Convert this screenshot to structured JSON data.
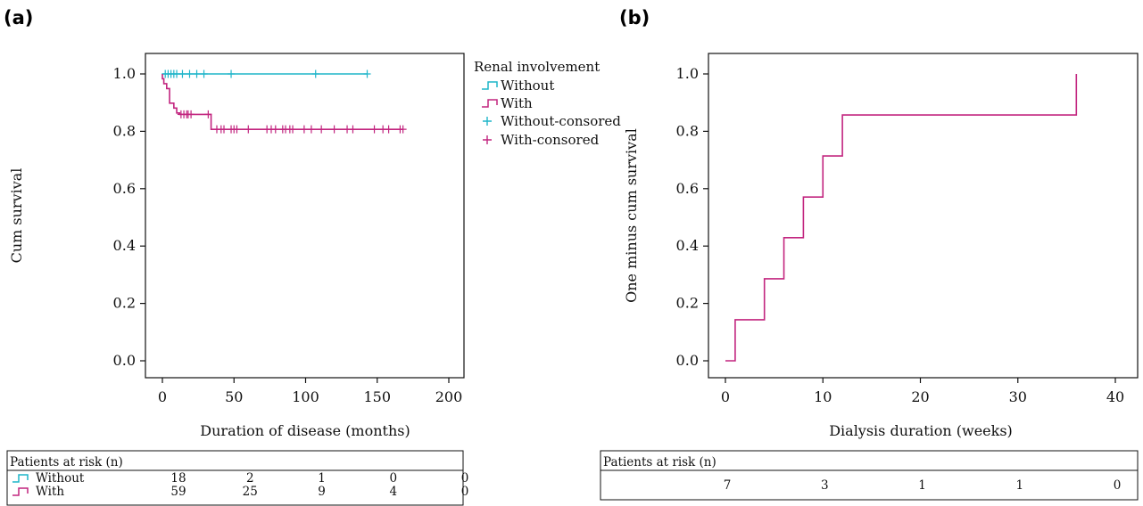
{
  "panels": {
    "a": {
      "label": "(a)"
    },
    "b": {
      "label": "(b)"
    }
  },
  "chart_data": [
    {
      "type": "line",
      "step": true,
      "xlabel": "Duration of disease (months)",
      "ylabel": "Cum survival",
      "xlim": [
        0,
        200
      ],
      "ylim": [
        0.0,
        1.0
      ],
      "xticks": [
        "0",
        "50",
        "100",
        "150",
        "200"
      ],
      "yticks": [
        "0.0",
        "0.2",
        "0.4",
        "0.6",
        "0.8",
        "1.0"
      ],
      "legend": {
        "title": "Renal involvement",
        "position": "right-outside-top",
        "entries": [
          "Without",
          "With",
          "Without-consored",
          "With-consored"
        ]
      },
      "series": [
        {
          "name": "Without",
          "color": "#1fb5c9",
          "steps": [
            [
              0,
              1.0
            ],
            [
              143,
              1.0
            ]
          ],
          "censored": [
            [
              2,
              1.0
            ],
            [
              4,
              1.0
            ],
            [
              6,
              1.0
            ],
            [
              8,
              1.0
            ],
            [
              10,
              1.0
            ],
            [
              14,
              1.0
            ],
            [
              19,
              1.0
            ],
            [
              24,
              1.0
            ],
            [
              29,
              1.0
            ],
            [
              48,
              1.0
            ],
            [
              107,
              1.0
            ],
            [
              143,
              1.0
            ]
          ]
        },
        {
          "name": "With",
          "color": "#c2257f",
          "steps": [
            [
              0,
              1.0
            ],
            [
              0,
              0.983
            ],
            [
              1,
              0.983
            ],
            [
              1,
              0.966
            ],
            [
              3,
              0.966
            ],
            [
              3,
              0.949
            ],
            [
              5,
              0.949
            ],
            [
              5,
              0.898
            ],
            [
              8,
              0.898
            ],
            [
              8,
              0.881
            ],
            [
              10,
              0.881
            ],
            [
              10,
              0.864
            ],
            [
              12,
              0.864
            ],
            [
              12,
              0.859
            ],
            [
              34,
              0.859
            ],
            [
              34,
              0.807
            ],
            [
              168,
              0.807
            ]
          ],
          "censored": [
            [
              13,
              0.859
            ],
            [
              15,
              0.859
            ],
            [
              17,
              0.859
            ],
            [
              18,
              0.859
            ],
            [
              20,
              0.859
            ],
            [
              32,
              0.859
            ],
            [
              38,
              0.807
            ],
            [
              41,
              0.807
            ],
            [
              43,
              0.807
            ],
            [
              48,
              0.807
            ],
            [
              50,
              0.807
            ],
            [
              52,
              0.807
            ],
            [
              60,
              0.807
            ],
            [
              73,
              0.807
            ],
            [
              76,
              0.807
            ],
            [
              79,
              0.807
            ],
            [
              84,
              0.807
            ],
            [
              86,
              0.807
            ],
            [
              89,
              0.807
            ],
            [
              91,
              0.807
            ],
            [
              99,
              0.807
            ],
            [
              104,
              0.807
            ],
            [
              111,
              0.807
            ],
            [
              120,
              0.807
            ],
            [
              129,
              0.807
            ],
            [
              133,
              0.807
            ],
            [
              148,
              0.807
            ],
            [
              154,
              0.807
            ],
            [
              158,
              0.807
            ],
            [
              166,
              0.807
            ],
            [
              168,
              0.807
            ]
          ]
        }
      ],
      "risk_table": {
        "title": "Patients at risk (n)",
        "rows": [
          {
            "name": "Without",
            "values": [
              "18",
              "2",
              "1",
              "0",
              "0"
            ]
          },
          {
            "name": "With",
            "values": [
              "59",
              "25",
              "9",
              "4",
              "0"
            ]
          }
        ]
      }
    },
    {
      "type": "line",
      "step": true,
      "xlabel": "Dialysis duration (weeks)",
      "ylabel": "One minus cum survival",
      "xlim": [
        0,
        40
      ],
      "ylim": [
        0.0,
        1.0
      ],
      "xticks": [
        "0",
        "10",
        "20",
        "30",
        "40"
      ],
      "yticks": [
        "0.0",
        "0.2",
        "0.4",
        "0.6",
        "0.8",
        "1.0"
      ],
      "series": [
        {
          "color": "#c2257f",
          "steps": [
            [
              0,
              0.0
            ],
            [
              1,
              0.0
            ],
            [
              1,
              0.143
            ],
            [
              4,
              0.143
            ],
            [
              4,
              0.286
            ],
            [
              6,
              0.286
            ],
            [
              6,
              0.429
            ],
            [
              8,
              0.429
            ],
            [
              8,
              0.571
            ],
            [
              10,
              0.571
            ],
            [
              10,
              0.714
            ],
            [
              12,
              0.714
            ],
            [
              12,
              0.857
            ],
            [
              36,
              0.857
            ],
            [
              36,
              1.0
            ]
          ]
        }
      ],
      "risk_table": {
        "title": "Patients at risk (n)",
        "rows": [
          {
            "values": [
              "7",
              "3",
              "1",
              "1",
              "0"
            ]
          }
        ]
      }
    }
  ]
}
